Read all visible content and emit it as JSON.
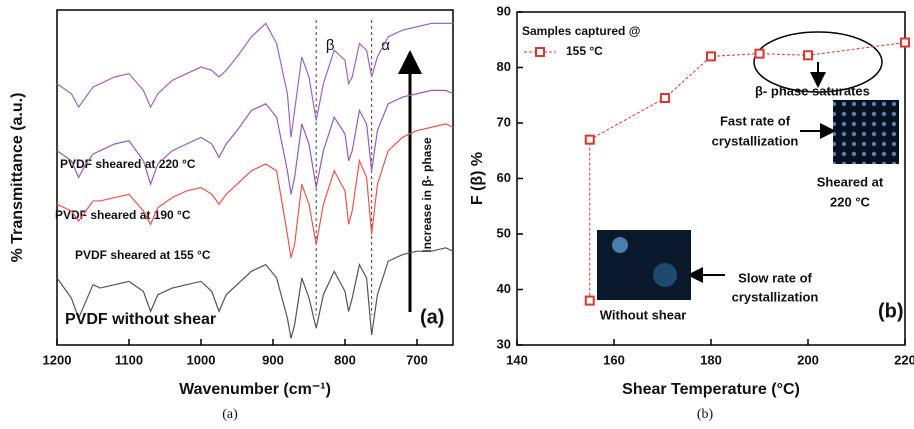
{
  "chart_data": [
    {
      "type": "line",
      "xlabel": "Wavenumber (cm⁻¹)",
      "ylabel": "% Transmittance (a.u.)",
      "xlim": [
        1200,
        650
      ],
      "xticks": [
        1200,
        1100,
        1000,
        900,
        800,
        700
      ],
      "ylim": [
        0,
        100
      ],
      "x": [
        1200,
        1180,
        1170,
        1160,
        1150,
        1140,
        1120,
        1100,
        1080,
        1070,
        1060,
        1040,
        1020,
        1000,
        985,
        975,
        965,
        950,
        930,
        910,
        895,
        880,
        875,
        870,
        860,
        850,
        840,
        830,
        815,
        800,
        795,
        790,
        780,
        770,
        763,
        755,
        740,
        720,
        700,
        680,
        660,
        650
      ],
      "series": [
        {
          "name": "PVDF sheared at 220 °C",
          "color": "#a064c4",
          "values": [
            78,
            75,
            71,
            74,
            77,
            78,
            80,
            81,
            76,
            71,
            75,
            79,
            81,
            83,
            82,
            80,
            82,
            86,
            92,
            96,
            90,
            75,
            62,
            70,
            86,
            80,
            67,
            78,
            88,
            85,
            78,
            80,
            90,
            88,
            80,
            86,
            92,
            94,
            95,
            96,
            96,
            96
          ]
        },
        {
          "name": "PVDF sheared at 190 °C",
          "color": "#9a5cb8",
          "values": [
            58,
            55,
            50,
            54,
            57,
            58,
            60,
            61,
            55,
            48,
            54,
            58,
            60,
            62,
            60,
            56,
            60,
            64,
            70,
            72,
            68,
            52,
            45,
            50,
            66,
            60,
            47,
            58,
            68,
            63,
            55,
            58,
            70,
            66,
            52,
            64,
            72,
            74,
            75,
            76,
            76,
            75
          ]
        },
        {
          "name": "PVDF sheared at 155 °C",
          "color": "#e8574f",
          "values": [
            42,
            40,
            37,
            40,
            43,
            43,
            44,
            45,
            40,
            36,
            41,
            44,
            46,
            47,
            45,
            42,
            45,
            48,
            52,
            54,
            52,
            33,
            26,
            30,
            48,
            42,
            30,
            42,
            52,
            46,
            36,
            40,
            55,
            50,
            33,
            48,
            58,
            62,
            64,
            65,
            66,
            65
          ]
        },
        {
          "name": "PVDF without shear",
          "color": "#555555",
          "values": [
            20,
            14,
            8,
            13,
            18,
            17,
            18,
            19,
            16,
            10,
            15,
            17,
            18,
            19,
            16,
            10,
            15,
            18,
            22,
            24,
            20,
            8,
            2,
            6,
            20,
            14,
            5,
            15,
            22,
            16,
            10,
            14,
            24,
            20,
            3,
            15,
            25,
            27,
            28,
            28,
            29,
            28
          ]
        }
      ],
      "markers": [
        {
          "label": "β",
          "x": 840
        },
        {
          "label": "α",
          "x": 763
        }
      ],
      "arrow_label": "Increase in β- phase",
      "panel_label": "(a)",
      "caption": "(a)"
    },
    {
      "type": "line",
      "xlabel": "Shear Temperature (°C)",
      "ylabel": "F (β) %",
      "xlim": [
        140,
        220
      ],
      "xticks": [
        140,
        160,
        180,
        200,
        220
      ],
      "ylim": [
        30,
        90
      ],
      "yticks": [
        30,
        40,
        50,
        60,
        70,
        80,
        90
      ],
      "x": [
        155,
        155,
        170.5,
        180,
        190,
        200,
        220
      ],
      "series": [
        {
          "name": "155 °C",
          "color": "#e0342f",
          "values": [
            38,
            67,
            74.5,
            82,
            82.5,
            82.2,
            84.5
          ]
        }
      ],
      "legend_title": "Samples captured @",
      "annotations": [
        "β- phase saturates",
        "Fast rate of",
        "crystallization",
        "Sheared at",
        "220 °C",
        "Slow rate of",
        "crystallization",
        "Without shear"
      ],
      "panel_label": "(b)",
      "caption": "(b)"
    }
  ]
}
